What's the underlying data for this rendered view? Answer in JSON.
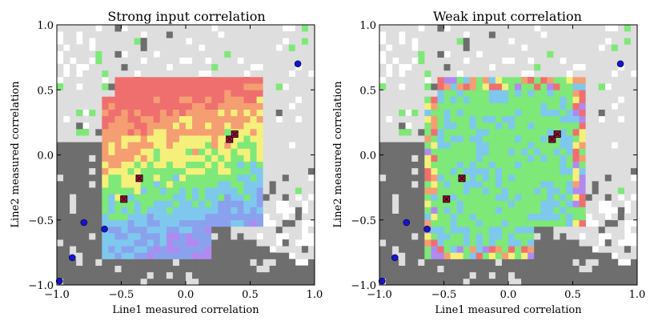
{
  "chart_data": [
    {
      "type": "heatmap",
      "title": "Strong input correlation",
      "xlabel": "Line1 measured correlation",
      "ylabel": "Line2 measured correlation",
      "xlim": [
        -1.0,
        1.0
      ],
      "ylim": [
        -1.0,
        1.0
      ],
      "xticks": [
        "−1.0",
        "−0.5",
        "0.0",
        "0.5",
        "1.0"
      ],
      "yticks": [
        "−1.0",
        "−0.5",
        "0.0",
        "0.5",
        "1.0"
      ],
      "grid": false,
      "mode": "strong",
      "blue_points": [
        {
          "x": -0.98,
          "y": -0.97
        },
        {
          "x": -0.88,
          "y": -0.79
        },
        {
          "x": -0.79,
          "y": -0.52
        },
        {
          "x": -0.63,
          "y": -0.57
        },
        {
          "x": 0.87,
          "y": 0.7
        }
      ],
      "marked_points": [
        {
          "x": -0.48,
          "y": -0.34
        },
        {
          "x": -0.36,
          "y": -0.18
        },
        {
          "x": 0.34,
          "y": 0.12
        },
        {
          "x": 0.38,
          "y": 0.16
        }
      ]
    },
    {
      "type": "heatmap",
      "title": "Weak input correlation",
      "xlabel": "Line1 measured correlation",
      "ylabel": "Line2 measured correlation",
      "xlim": [
        -1.0,
        1.0
      ],
      "ylim": [
        -1.0,
        1.0
      ],
      "xticks": [
        "−1.0",
        "−0.5",
        "0.0",
        "0.5",
        "1.0"
      ],
      "yticks": [
        "−1.0",
        "−0.5",
        "0.0",
        "0.5",
        "1.0"
      ],
      "grid": false,
      "mode": "weak",
      "blue_points": [
        {
          "x": -0.98,
          "y": -0.97
        },
        {
          "x": -0.88,
          "y": -0.79
        },
        {
          "x": -0.79,
          "y": -0.52
        },
        {
          "x": -0.63,
          "y": -0.57
        },
        {
          "x": 0.87,
          "y": 0.7
        }
      ],
      "marked_points": [
        {
          "x": -0.48,
          "y": -0.34
        },
        {
          "x": -0.36,
          "y": -0.18
        },
        {
          "x": 0.34,
          "y": 0.12
        },
        {
          "x": 0.38,
          "y": 0.16
        }
      ]
    }
  ],
  "colors": {
    "background_cell": "#dedede",
    "dark_cell": "#6e6e6e",
    "blue_point": "#1414d2",
    "marked_fill": "#c8004a",
    "marked_edge": "#000000",
    "palette": [
      "#ef6f6f",
      "#f59e72",
      "#f5f07a",
      "#7ee878",
      "#7ec8ee",
      "#8aa2ee",
      "#b08af0"
    ]
  }
}
